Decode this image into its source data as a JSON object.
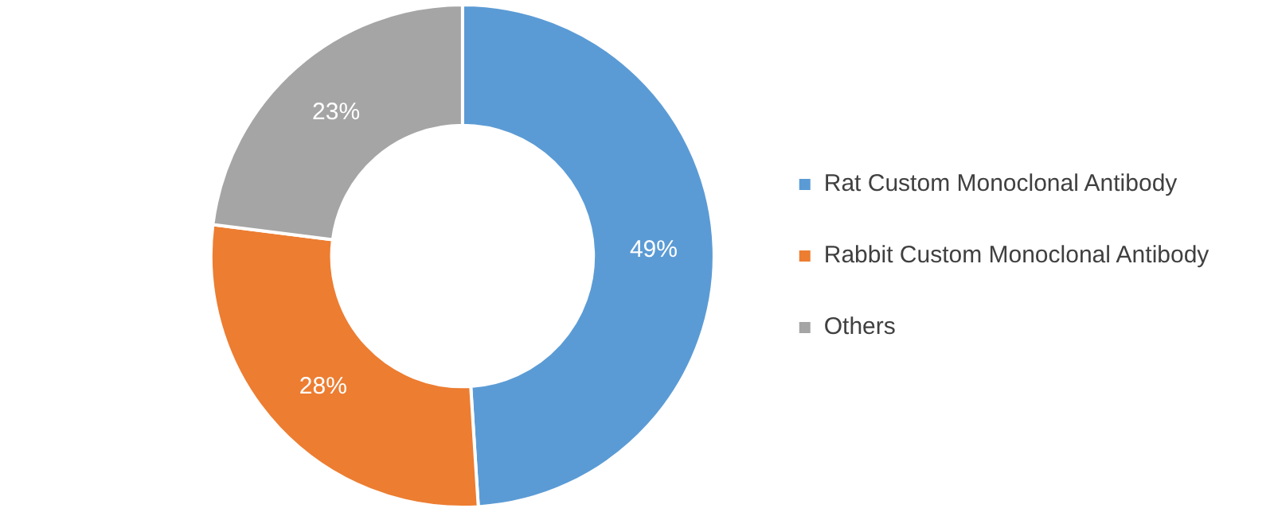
{
  "chart_data": {
    "type": "donut",
    "categories": [
      "Rat Custom Monoclonal Antibody",
      "Rabbit Custom Monoclonal Antibody",
      "Others"
    ],
    "values": [
      49,
      28,
      23
    ],
    "colors": [
      "#5b9bd5",
      "#ed7d31",
      "#a5a5a5"
    ],
    "value_labels": [
      "49%",
      "28%",
      "23%"
    ],
    "legend": "right"
  }
}
